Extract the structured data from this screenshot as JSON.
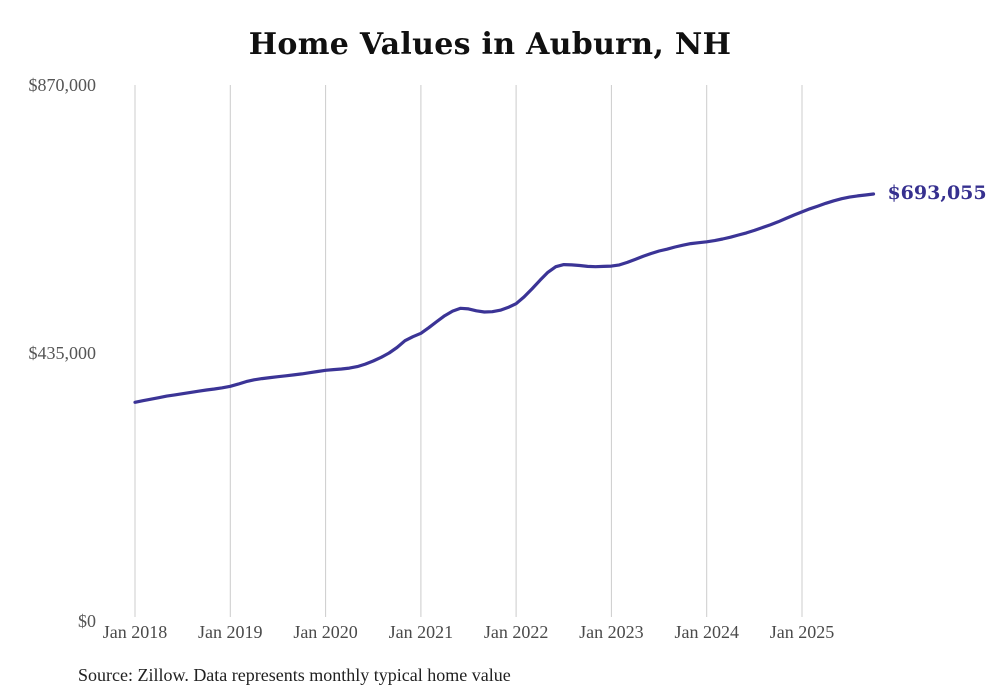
{
  "chart_data": {
    "type": "line",
    "title": "Home Values in Auburn, NH",
    "series_name": "Monthly typical home value",
    "start_month": "2018-01",
    "frequency": "monthly",
    "values": [
      355000,
      357500,
      360000,
      362500,
      365000,
      367000,
      369000,
      371000,
      373000,
      375000,
      376500,
      378500,
      381000,
      384500,
      388500,
      391500,
      393500,
      395000,
      396500,
      398000,
      399500,
      401000,
      403000,
      405000,
      407000,
      408000,
      409000,
      410500,
      413000,
      417000,
      422000,
      428000,
      435000,
      444000,
      455000,
      461500,
      467000,
      476000,
      486000,
      495500,
      503000,
      507500,
      506500,
      503500,
      501500,
      502000,
      504500,
      509000,
      515000,
      526000,
      539000,
      553000,
      566000,
      575000,
      578500,
      578000,
      577000,
      575500,
      575000,
      575500,
      576000,
      578000,
      582000,
      587000,
      592000,
      596500,
      600500,
      603500,
      607000,
      610000,
      612500,
      614000,
      615500,
      617500,
      620000,
      623000,
      626500,
      630000,
      634000,
      638500,
      643000,
      648000,
      653500,
      659000,
      664000,
      669000,
      673500,
      678000,
      682000,
      685500,
      688000,
      690000,
      691500,
      693055
    ],
    "x_ticks": [
      {
        "label": "Jan 2018",
        "month_index": 0
      },
      {
        "label": "Jan 2019",
        "month_index": 12
      },
      {
        "label": "Jan 2020",
        "month_index": 24
      },
      {
        "label": "Jan 2021",
        "month_index": 36
      },
      {
        "label": "Jan 2022",
        "month_index": 48
      },
      {
        "label": "Jan 2023",
        "month_index": 60
      },
      {
        "label": "Jan 2024",
        "month_index": 72
      },
      {
        "label": "Jan 2025",
        "month_index": 84
      }
    ],
    "y_ticks": [
      {
        "label": "$870,000",
        "value": 870000
      },
      {
        "label": "$435,000",
        "value": 435000
      },
      {
        "label": "$0",
        "value": 0
      }
    ],
    "ylim": [
      0,
      870000
    ],
    "grid": "vertical-only",
    "legend": "none",
    "end_label": "$693,055",
    "end_value": 693055,
    "line_color": "#3b3496",
    "gridline_color": "#cccccc"
  },
  "footer": {
    "source": "Source: Zillow. Data represents monthly typical home value"
  }
}
